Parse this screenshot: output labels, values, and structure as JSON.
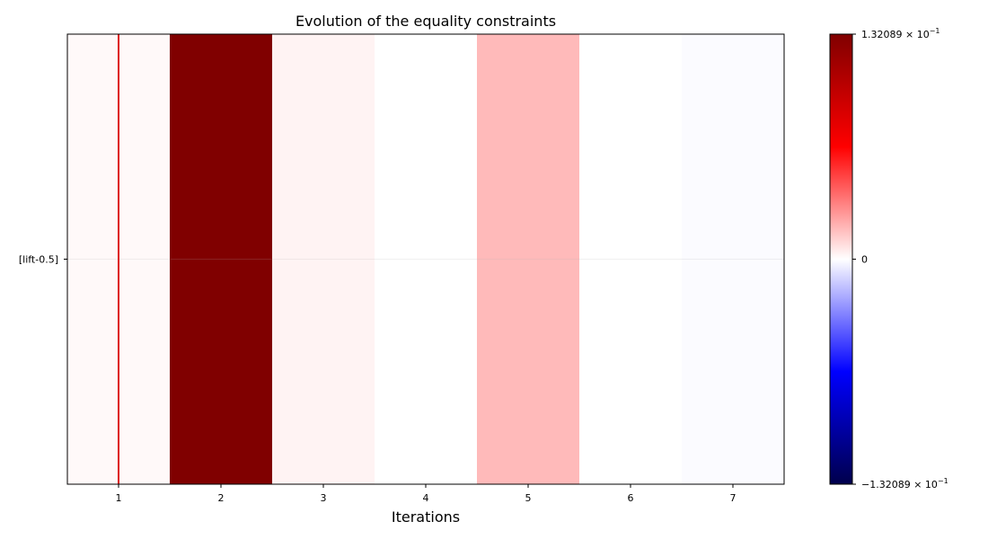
{
  "chart_data": {
    "type": "heatmap",
    "title": "Evolution of the equality constraints",
    "xlabel": "Iterations",
    "ylabel": "",
    "x": [
      1,
      2,
      3,
      4,
      5,
      6,
      7
    ],
    "xlim": [
      0.5,
      7.5
    ],
    "xticks": [
      "1",
      "2",
      "3",
      "4",
      "5",
      "6",
      "7"
    ],
    "rows": [
      "[lift-0.5]"
    ],
    "values": [
      [
        0.0015,
        0.132089,
        0.003,
        0.0,
        0.018,
        0.0,
        -0.001
      ]
    ],
    "vline": {
      "x": 1,
      "color": "#dd1111"
    },
    "horizontal_gridline": true,
    "colorbar": {
      "colormap": "seismic",
      "min": -0.132089,
      "max": 0.132089,
      "tick_labels": {
        "max": {
          "mant": "1.32089",
          "exp": "−1"
        },
        "zero": "0",
        "min": {
          "mant": "−1.32089",
          "exp": "−1"
        }
      }
    }
  }
}
